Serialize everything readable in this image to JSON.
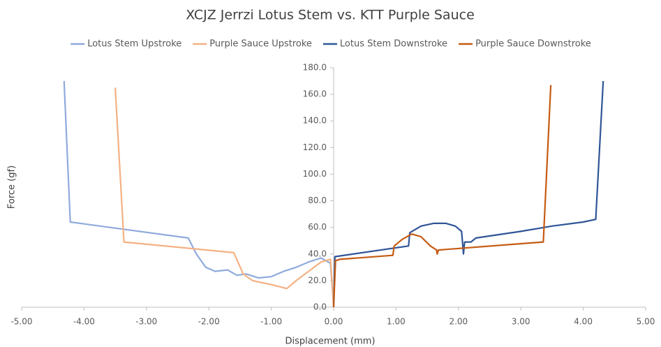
{
  "chart_data": {
    "type": "line",
    "title": "XCJZ Jerrzi Lotus Stem vs. KTT Purple Sauce",
    "x_label": "Displacement (mm)",
    "y_label": "Force (gf)",
    "legend": "top",
    "xlim": [
      -5,
      5
    ],
    "xticks": [
      {
        "value": -5,
        "label": "-5.00"
      },
      {
        "value": -4,
        "label": "-4.00"
      },
      {
        "value": -3,
        "label": "-3.00"
      },
      {
        "value": -2,
        "label": "-2.00"
      },
      {
        "value": -1,
        "label": "-1.00"
      },
      {
        "value": 0,
        "label": "0.00"
      },
      {
        "value": 1,
        "label": "1.00"
      },
      {
        "value": 2,
        "label": "2.00"
      },
      {
        "value": 3,
        "label": "3.00"
      },
      {
        "value": 4,
        "label": "4.00"
      },
      {
        "value": 5,
        "label": "5.00"
      }
    ],
    "ylim": [
      0,
      180
    ],
    "yticks": [
      {
        "value": 0,
        "label": "0.0"
      },
      {
        "value": 20,
        "label": "20.0"
      },
      {
        "value": 40,
        "label": "40.0"
      },
      {
        "value": 60,
        "label": "60.0"
      },
      {
        "value": 80,
        "label": "80.0"
      },
      {
        "value": 100,
        "label": "100.0"
      },
      {
        "value": 120,
        "label": "120.0"
      },
      {
        "value": 140,
        "label": "140.0"
      },
      {
        "value": 160,
        "label": "160.0"
      },
      {
        "value": 180,
        "label": "180.0"
      }
    ],
    "series": [
      {
        "name": "Lotus Stem Upstroke",
        "color": "#8faadc",
        "x": [
          -4.32,
          -4.22,
          -2.33,
          -2.2,
          -2.05,
          -1.9,
          -1.7,
          -1.55,
          -1.4,
          -1.2,
          -1.0,
          -0.8,
          -0.6,
          -0.4,
          -0.2,
          -0.05,
          0
        ],
        "values": [
          170,
          64,
          52,
          40,
          30,
          27,
          28,
          24,
          25,
          22,
          23,
          27,
          30,
          34,
          37,
          33,
          0
        ]
      },
      {
        "name": "Purple Sauce Upstroke",
        "color": "#f4b183",
        "x": [
          -3.5,
          -3.36,
          -1.6,
          -1.45,
          -1.3,
          -1.0,
          -0.75,
          -0.6,
          -0.4,
          -0.2,
          -0.05,
          0
        ],
        "values": [
          165,
          49,
          41,
          25,
          20,
          17,
          14,
          20,
          27,
          34,
          36,
          0
        ]
      },
      {
        "name": "Lotus Stem Downstroke",
        "color": "#2f5597",
        "x": [
          0,
          0.02,
          1.2,
          1.22,
          1.4,
          1.6,
          1.8,
          1.95,
          2.05,
          2.08,
          2.1,
          2.2,
          2.28,
          3.0,
          3.5,
          4.0,
          4.2,
          4.32
        ],
        "values": [
          0,
          38,
          46,
          56,
          61,
          63,
          63,
          61,
          57,
          40,
          49,
          49,
          52,
          57,
          61,
          64,
          66,
          170
        ]
      },
      {
        "name": "Purple Sauce Downstroke",
        "color": "#c55a11",
        "x": [
          0,
          0.03,
          0.1,
          0.95,
          0.97,
          1.1,
          1.25,
          1.4,
          1.55,
          1.65,
          1.66,
          1.68,
          3.36,
          3.48
        ],
        "values": [
          0,
          35,
          36,
          39,
          46,
          51,
          55,
          53,
          46,
          43,
          40,
          43,
          49,
          167
        ]
      }
    ]
  }
}
